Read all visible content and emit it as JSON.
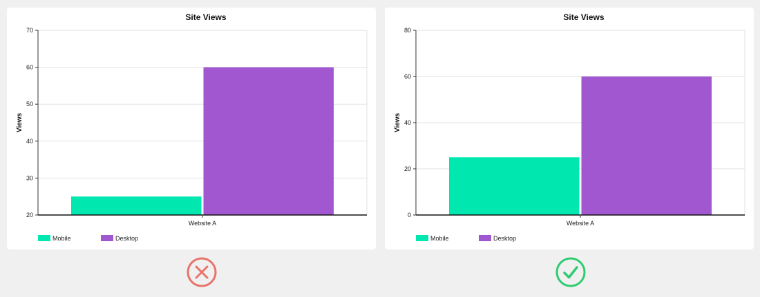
{
  "chart_data": [
    {
      "type": "bar",
      "title": "Site Views",
      "ylabel": "Views",
      "xlabel": "",
      "categories": [
        "Website A"
      ],
      "series": [
        {
          "name": "Mobile",
          "values": [
            25
          ],
          "color": "#00e8b0"
        },
        {
          "name": "Desktop",
          "values": [
            60
          ],
          "color": "#a157cf"
        }
      ],
      "ylim": [
        20,
        70
      ],
      "yticks": [
        20,
        30,
        40,
        50,
        60,
        70
      ],
      "grid": true,
      "legend_position": "bottom-left"
    },
    {
      "type": "bar",
      "title": "Site Views",
      "ylabel": "Views",
      "xlabel": "",
      "categories": [
        "Website A"
      ],
      "series": [
        {
          "name": "Mobile",
          "values": [
            25
          ],
          "color": "#00e8b0"
        },
        {
          "name": "Desktop",
          "values": [
            60
          ],
          "color": "#a157cf"
        }
      ],
      "ylim": [
        0,
        80
      ],
      "yticks": [
        0,
        20,
        40,
        60,
        80
      ],
      "grid": true,
      "legend_position": "bottom-left"
    }
  ],
  "indicators": {
    "bad": {
      "icon": "cross-circle-icon",
      "color": "#e8736b"
    },
    "good": {
      "icon": "check-circle-icon",
      "color": "#2ecc71"
    }
  }
}
